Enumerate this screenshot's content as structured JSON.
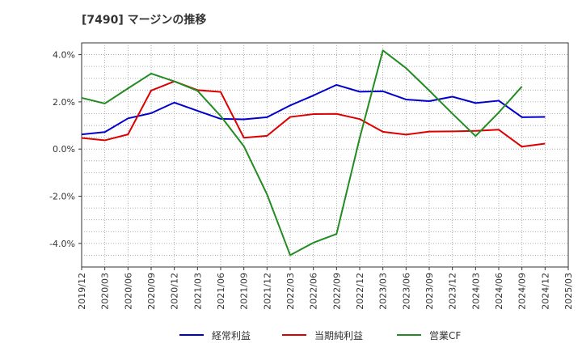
{
  "title": "[7490]  マージンの推移",
  "chart_data": {
    "type": "line",
    "x": [
      "2019/12",
      "2020/03",
      "2020/06",
      "2020/09",
      "2020/12",
      "2021/03",
      "2021/06",
      "2021/09",
      "2021/12",
      "2022/03",
      "2022/06",
      "2022/09",
      "2022/12",
      "2023/03",
      "2023/06",
      "2023/09",
      "2023/12",
      "2024/03",
      "2024/06",
      "2024/09",
      "2024/12"
    ],
    "x_ticks": [
      "2019/12",
      "2020/03",
      "2020/06",
      "2020/09",
      "2020/12",
      "2021/03",
      "2021/06",
      "2021/09",
      "2021/12",
      "2022/03",
      "2022/06",
      "2022/09",
      "2022/12",
      "2023/03",
      "2023/06",
      "2023/09",
      "2023/12",
      "2024/03",
      "2024/06",
      "2024/09",
      "2024/12",
      "2025/03"
    ],
    "ylim": [
      -5.0,
      4.5
    ],
    "y_ticks": [
      4.0,
      2.0,
      0.0,
      -2.0,
      -4.0
    ],
    "y_tick_labels": [
      "4.0%",
      "2.0%",
      "0.0%",
      "-2.0%",
      "-4.0%"
    ],
    "grid": true,
    "legend_position": "bottom",
    "series": [
      {
        "name": "経常利益",
        "color": "#0000cc",
        "values": [
          0.62,
          0.72,
          1.3,
          1.52,
          1.97,
          1.62,
          1.28,
          1.26,
          1.35,
          1.85,
          2.27,
          2.72,
          2.43,
          2.45,
          2.1,
          2.03,
          2.22,
          1.95,
          2.05,
          1.35,
          1.36
        ]
      },
      {
        "name": "当期純利益",
        "color": "#dd0000",
        "values": [
          0.47,
          0.37,
          0.62,
          2.48,
          2.87,
          2.5,
          2.42,
          0.48,
          0.56,
          1.36,
          1.48,
          1.49,
          1.27,
          0.73,
          0.61,
          0.74,
          0.75,
          0.77,
          0.82,
          0.1,
          0.23
        ]
      },
      {
        "name": "営業CF",
        "color": "#228b22",
        "values": [
          2.17,
          1.93,
          2.57,
          3.2,
          2.87,
          2.47,
          1.4,
          0.12,
          -1.92,
          -4.5,
          -3.97,
          -3.6,
          0.47,
          4.18,
          3.43,
          2.48,
          1.5,
          0.55,
          1.55,
          2.65,
          null
        ]
      }
    ]
  }
}
